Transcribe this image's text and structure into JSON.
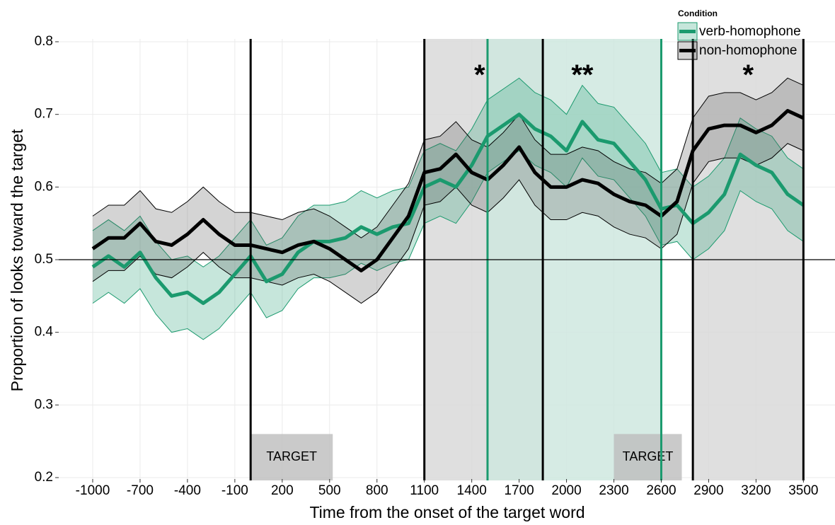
{
  "chart_data": {
    "type": "ribbon-line",
    "xlabel": "Time from the onset of the target word",
    "ylabel": "Proportion of looks toward the target",
    "xlim": [
      -1215,
      3700
    ],
    "ylim": [
      0.2,
      0.8
    ],
    "xticks": [
      -1000,
      -700,
      -400,
      -100,
      200,
      500,
      800,
      1100,
      1400,
      1700,
      2000,
      2300,
      2600,
      2900,
      3200,
      3500
    ],
    "yticks": [
      0.2,
      0.3,
      0.4,
      0.5,
      0.6,
      0.7,
      0.8
    ],
    "grid": true,
    "legend": {
      "title": "Condition",
      "position": "top-right"
    },
    "hline": 0.5,
    "regions": [
      {
        "start": 1100,
        "end": 1850,
        "color": "#d9d9d9"
      },
      {
        "start": 1500,
        "end": 2600,
        "color": "#cfe8df"
      },
      {
        "start": 2800,
        "end": 3500,
        "color": "#d9d9d9"
      }
    ],
    "vlines": [
      {
        "x": 0,
        "color": "#000000"
      },
      {
        "x": 1100,
        "color": "#000000"
      },
      {
        "x": 1850,
        "color": "#000000"
      },
      {
        "x": 2800,
        "color": "#000000"
      },
      {
        "x": 3500,
        "color": "#000000"
      },
      {
        "x": 1500,
        "color": "#1b9a6e"
      },
      {
        "x": 2600,
        "color": "#1b9a6e"
      }
    ],
    "target_boxes": [
      {
        "label": "TARGET",
        "start": 0,
        "end": 520,
        "top": 0.26
      },
      {
        "label": "TARGET",
        "start": 2300,
        "end": 2730,
        "top": 0.26
      }
    ],
    "annotations": [
      {
        "text": "*",
        "x": 1450,
        "y": 0.752,
        "color": "#000000"
      },
      {
        "text": "**",
        "x": 2100,
        "y": 0.752,
        "color": "#1b9a6e"
      },
      {
        "text": "*",
        "x": 3150,
        "y": 0.752,
        "color": "#000000"
      }
    ],
    "x": [
      -1000,
      -900,
      -800,
      -700,
      -600,
      -500,
      -400,
      -300,
      -200,
      -100,
      0,
      100,
      200,
      300,
      400,
      500,
      600,
      700,
      800,
      900,
      1000,
      1100,
      1200,
      1300,
      1400,
      1500,
      1600,
      1700,
      1800,
      1900,
      2000,
      2100,
      2200,
      2300,
      2400,
      2500,
      2600,
      2700,
      2800,
      2900,
      3000,
      3100,
      3200,
      3300,
      3400,
      3500
    ],
    "series": [
      {
        "name": "verb-homophone",
        "color": "#1b9a6e",
        "fill": "#1b9a6e",
        "values": [
          0.49,
          0.505,
          0.49,
          0.51,
          0.475,
          0.45,
          0.455,
          0.44,
          0.455,
          0.48,
          0.505,
          0.47,
          0.48,
          0.51,
          0.525,
          0.525,
          0.53,
          0.545,
          0.535,
          0.545,
          0.55,
          0.6,
          0.61,
          0.6,
          0.63,
          0.67,
          0.685,
          0.7,
          0.68,
          0.67,
          0.65,
          0.69,
          0.665,
          0.66,
          0.635,
          0.61,
          0.57,
          0.575,
          0.55,
          0.565,
          0.59,
          0.645,
          0.63,
          0.62,
          0.59,
          0.575
        ],
        "lower": [
          0.44,
          0.455,
          0.44,
          0.46,
          0.425,
          0.4,
          0.405,
          0.39,
          0.405,
          0.43,
          0.455,
          0.42,
          0.43,
          0.46,
          0.475,
          0.475,
          0.48,
          0.495,
          0.485,
          0.495,
          0.5,
          0.55,
          0.56,
          0.55,
          0.58,
          0.62,
          0.635,
          0.65,
          0.63,
          0.62,
          0.6,
          0.64,
          0.615,
          0.61,
          0.585,
          0.56,
          0.52,
          0.525,
          0.5,
          0.515,
          0.54,
          0.595,
          0.58,
          0.57,
          0.54,
          0.525
        ],
        "upper": [
          0.54,
          0.555,
          0.54,
          0.56,
          0.525,
          0.5,
          0.505,
          0.49,
          0.505,
          0.53,
          0.555,
          0.52,
          0.53,
          0.56,
          0.575,
          0.575,
          0.58,
          0.595,
          0.585,
          0.595,
          0.6,
          0.65,
          0.66,
          0.65,
          0.68,
          0.72,
          0.735,
          0.75,
          0.73,
          0.72,
          0.7,
          0.74,
          0.715,
          0.71,
          0.685,
          0.66,
          0.62,
          0.625,
          0.6,
          0.615,
          0.64,
          0.695,
          0.68,
          0.67,
          0.64,
          0.625
        ]
      },
      {
        "name": "non-homophone",
        "color": "#000000",
        "fill": "#555555",
        "values": [
          0.515,
          0.53,
          0.53,
          0.55,
          0.525,
          0.52,
          0.535,
          0.555,
          0.535,
          0.52,
          0.52,
          0.515,
          0.51,
          0.52,
          0.525,
          0.515,
          0.5,
          0.485,
          0.5,
          0.53,
          0.56,
          0.62,
          0.625,
          0.645,
          0.62,
          0.61,
          0.63,
          0.655,
          0.62,
          0.6,
          0.6,
          0.61,
          0.605,
          0.59,
          0.58,
          0.575,
          0.56,
          0.58,
          0.65,
          0.68,
          0.685,
          0.685,
          0.675,
          0.685,
          0.705,
          0.695
        ],
        "lower": [
          0.47,
          0.485,
          0.485,
          0.505,
          0.48,
          0.475,
          0.49,
          0.51,
          0.49,
          0.475,
          0.475,
          0.47,
          0.465,
          0.475,
          0.48,
          0.47,
          0.455,
          0.44,
          0.455,
          0.485,
          0.515,
          0.575,
          0.58,
          0.6,
          0.575,
          0.565,
          0.585,
          0.61,
          0.575,
          0.555,
          0.555,
          0.565,
          0.56,
          0.545,
          0.535,
          0.53,
          0.515,
          0.535,
          0.605,
          0.635,
          0.64,
          0.64,
          0.63,
          0.64,
          0.66,
          0.65
        ],
        "upper": [
          0.56,
          0.575,
          0.575,
          0.595,
          0.57,
          0.565,
          0.58,
          0.6,
          0.58,
          0.565,
          0.565,
          0.56,
          0.555,
          0.565,
          0.57,
          0.56,
          0.545,
          0.53,
          0.545,
          0.575,
          0.605,
          0.665,
          0.67,
          0.69,
          0.665,
          0.655,
          0.675,
          0.7,
          0.665,
          0.645,
          0.645,
          0.655,
          0.65,
          0.635,
          0.625,
          0.62,
          0.605,
          0.625,
          0.695,
          0.725,
          0.73,
          0.73,
          0.72,
          0.73,
          0.75,
          0.74
        ]
      }
    ]
  }
}
